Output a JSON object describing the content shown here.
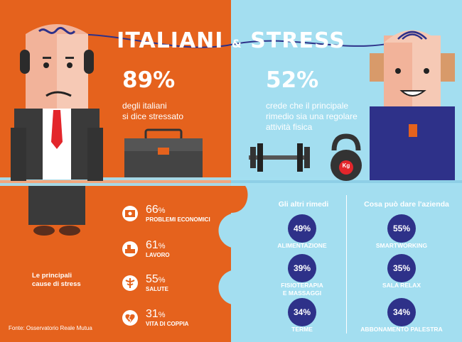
{
  "title": {
    "part1": "ITALIANI",
    "amp": "&",
    "part2": "STRESS"
  },
  "left_stat": {
    "value": "89%",
    "desc_line1": "degli italiani",
    "desc_line2": "si dice stressato"
  },
  "right_stat": {
    "value": "52%",
    "desc_line1": "crede che il principale",
    "desc_line2": "rimedio sia una regolare",
    "desc_line3": "attività fisica"
  },
  "kettlebell_label": "Kg",
  "remedies": {
    "heading_left": "Gli altri rimedi",
    "heading_right": "Cosa può dare l'azienda",
    "left": [
      {
        "pct": "49%",
        "label_line1": "ALIMENTAZIONE",
        "label_line2": ""
      },
      {
        "pct": "39%",
        "label_line1": "FISIOTERAPIA",
        "label_line2": "E MASSAGGI"
      },
      {
        "pct": "34%",
        "label_line1": "TERME",
        "label_line2": ""
      }
    ],
    "right": [
      {
        "pct": "55%",
        "label_line1": "SMARTWORKING",
        "label_line2": ""
      },
      {
        "pct": "35%",
        "label_line1": "SALA RELAX",
        "label_line2": ""
      },
      {
        "pct": "34%",
        "label_line1": "ABBONAMENTO PALESTRA",
        "label_line2": ""
      }
    ]
  },
  "causes": {
    "title_line1": "Le principali",
    "title_line2": "cause di stress",
    "items": [
      {
        "num": "66",
        "pc": "%",
        "label": "PROBLEMI ECONOMICI",
        "icon": "money-icon"
      },
      {
        "num": "61",
        "pc": "%",
        "label": "LAVORO",
        "icon": "work-desk-icon"
      },
      {
        "num": "55",
        "pc": "%",
        "label": "SALUTE",
        "icon": "caduceus-icon"
      },
      {
        "num": "31",
        "pc": "%",
        "label": "VITA DI COPPIA",
        "icon": "broken-heart-icon"
      }
    ]
  },
  "source": "Fonte: Osservatorio Reale Mutua",
  "colors": {
    "orange": "#e5621d",
    "light_blue": "#a3def0",
    "navy": "#2e3189"
  }
}
